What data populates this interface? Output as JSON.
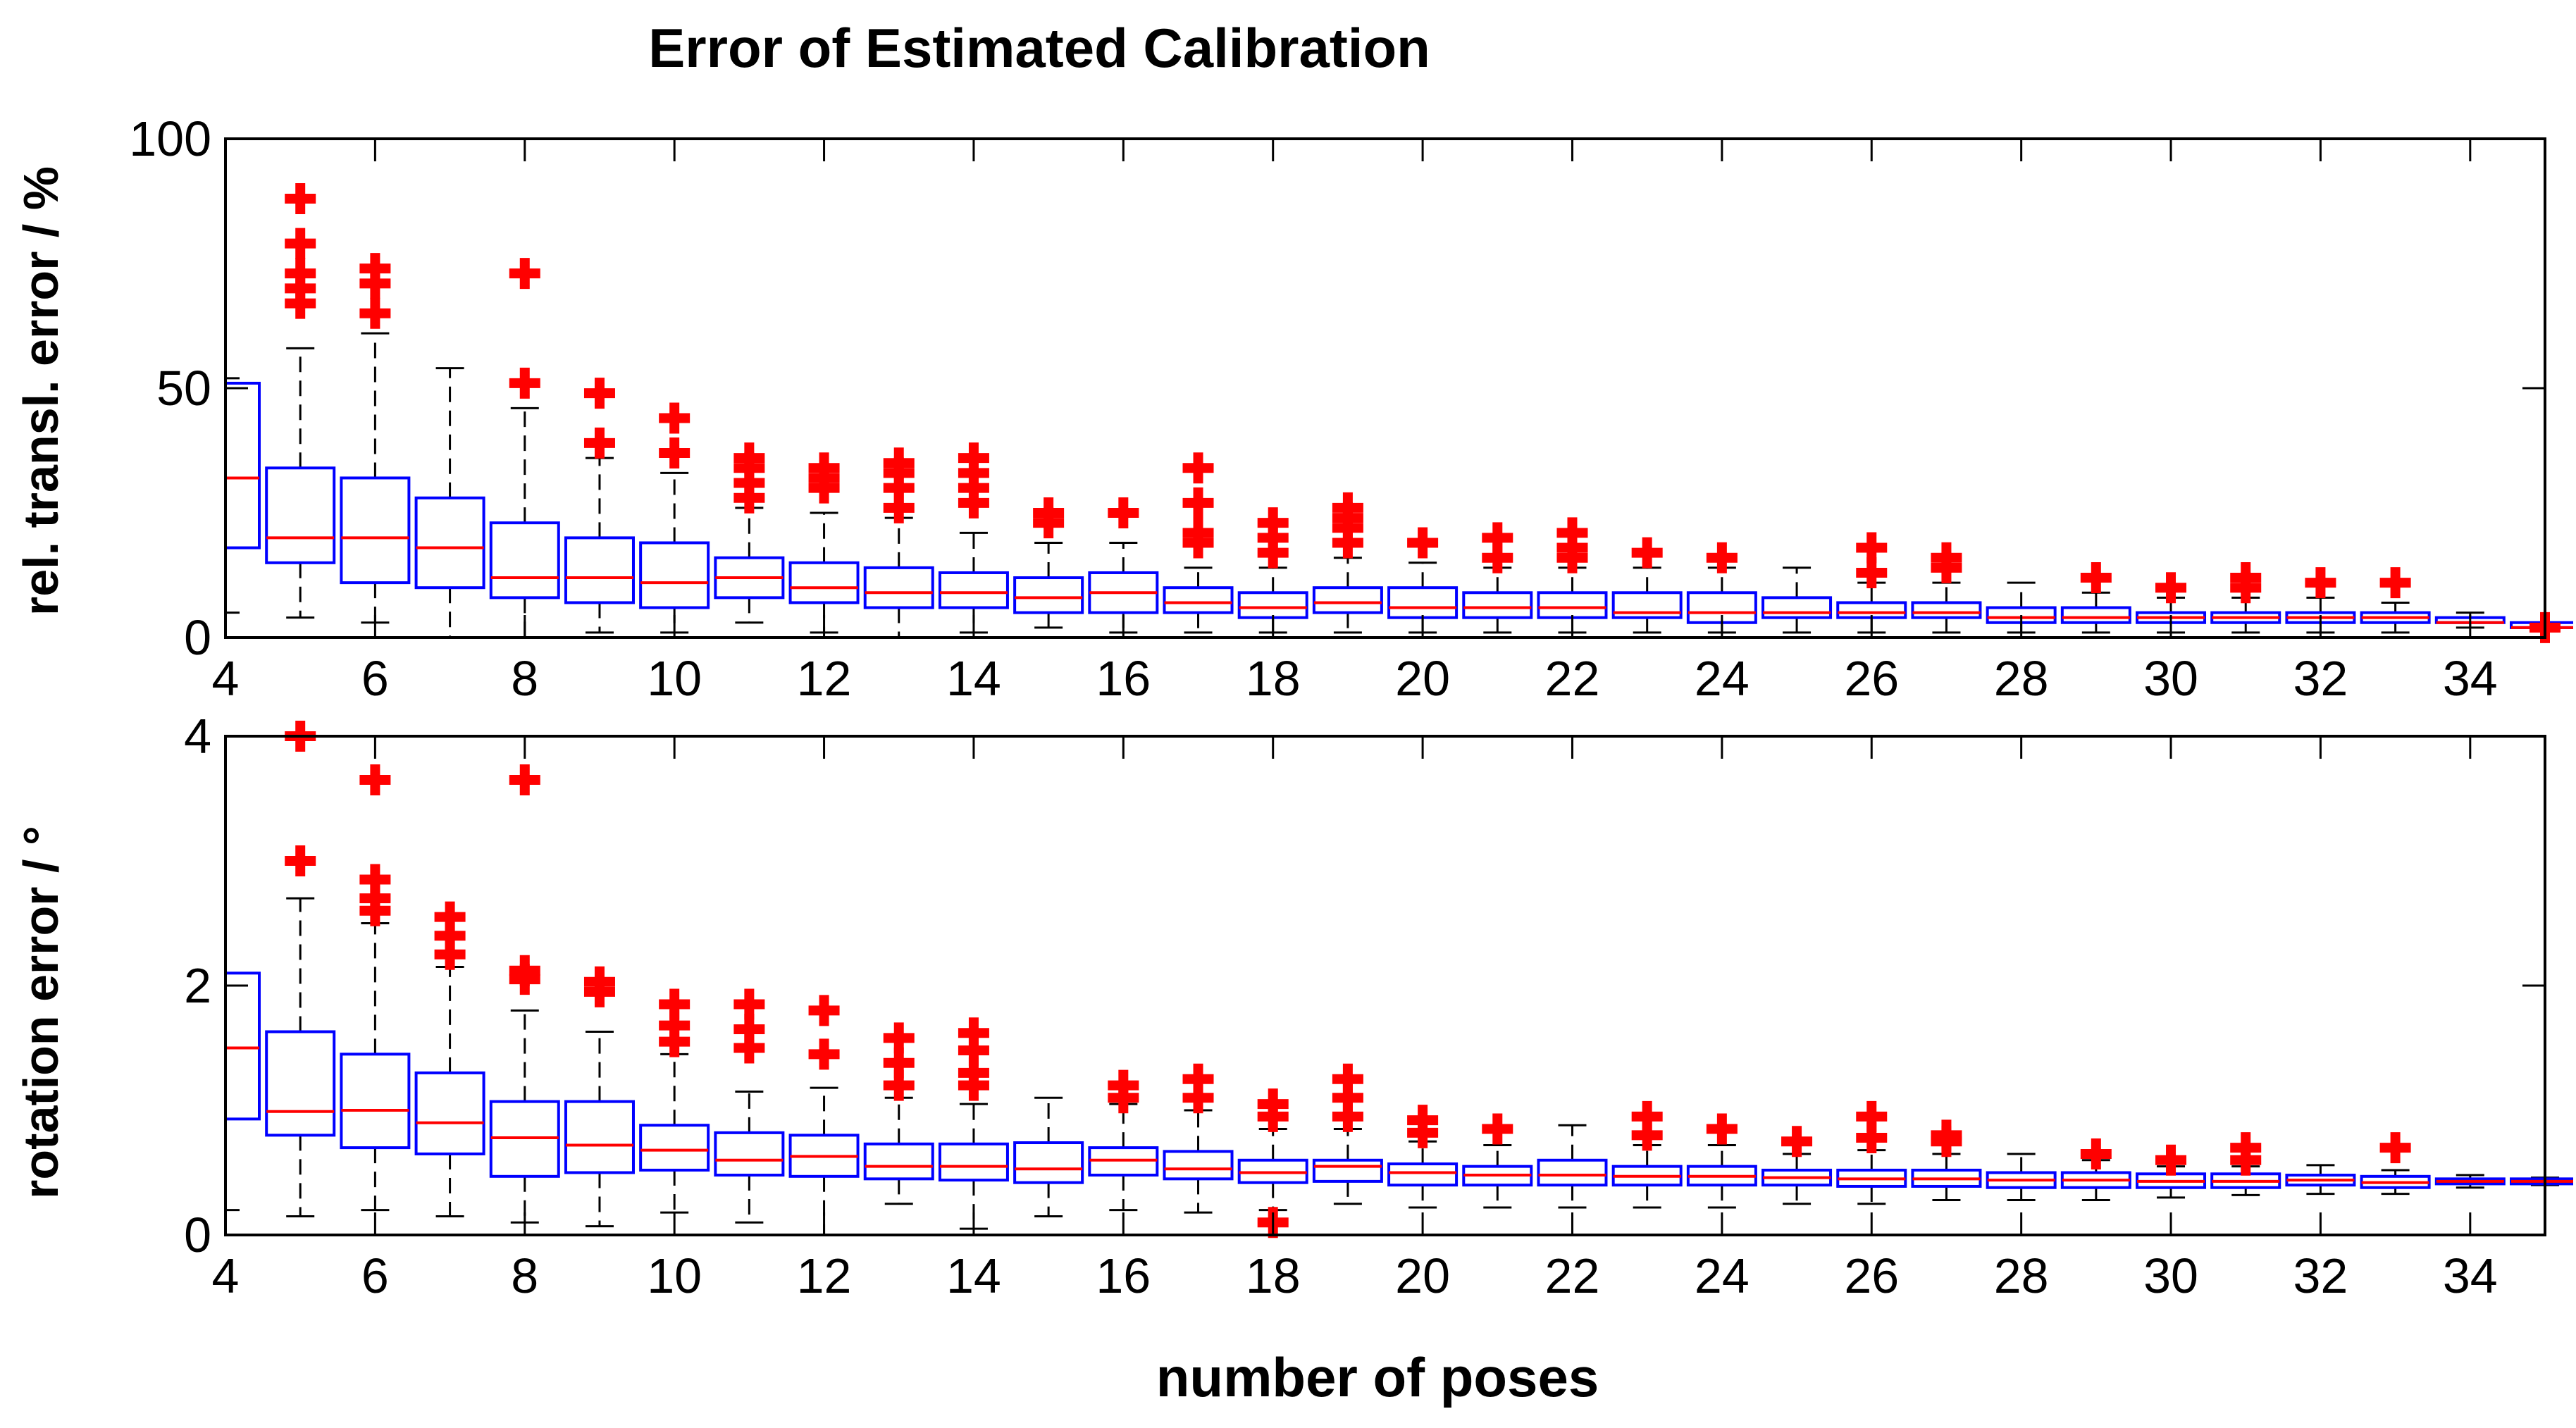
{
  "chart_data": {
    "type": "boxplot",
    "title": "Error of Estimated Calibration",
    "xlabel": "number of poses",
    "x_ticks": [
      4,
      6,
      8,
      10,
      12,
      14,
      16,
      18,
      20,
      22,
      24,
      26,
      28,
      30,
      32,
      34
    ],
    "xlim": [
      4,
      35
    ],
    "colors": {
      "box": "#0000ff",
      "median": "#ff0000",
      "whisker": "#000000",
      "outlier": "#ff0000"
    },
    "panels": [
      {
        "id": "translation",
        "ylabel": "rel. transl. error  /  %",
        "ylim": [
          0,
          100
        ],
        "y_ticks": [
          0,
          50,
          100
        ],
        "boxes": [
          {
            "x": 4,
            "q1": 18,
            "median": 32,
            "q3": 51,
            "lo": 5,
            "hi": 52,
            "outliers": []
          },
          {
            "x": 5,
            "q1": 15,
            "median": 20,
            "q3": 34,
            "lo": 4,
            "hi": 58,
            "outliers": [
              67,
              70,
              73,
              79,
              88
            ]
          },
          {
            "x": 6,
            "q1": 11,
            "median": 20,
            "q3": 32,
            "lo": 3,
            "hi": 61,
            "outliers": [
              65,
              71,
              74
            ]
          },
          {
            "x": 7,
            "q1": 10,
            "median": 18,
            "q3": 28,
            "lo": 0,
            "hi": 54,
            "outliers": []
          },
          {
            "x": 8,
            "q1": 8,
            "median": 12,
            "q3": 23,
            "lo": 0,
            "hi": 46,
            "outliers": [
              51,
              73
            ]
          },
          {
            "x": 9,
            "q1": 7,
            "median": 12,
            "q3": 20,
            "lo": 1,
            "hi": 36,
            "outliers": [
              39,
              49
            ]
          },
          {
            "x": 10,
            "q1": 6,
            "median": 11,
            "q3": 19,
            "lo": 1,
            "hi": 33,
            "outliers": [
              37,
              44
            ]
          },
          {
            "x": 11,
            "q1": 8,
            "median": 12,
            "q3": 16,
            "lo": 3,
            "hi": 26,
            "outliers": [
              28,
              31,
              34,
              36
            ]
          },
          {
            "x": 12,
            "q1": 7,
            "median": 10,
            "q3": 15,
            "lo": 1,
            "hi": 25,
            "outliers": [
              30,
              32,
              34
            ]
          },
          {
            "x": 13,
            "q1": 6,
            "median": 9,
            "q3": 14,
            "lo": 0,
            "hi": 24,
            "outliers": [
              26,
              30,
              33,
              35
            ]
          },
          {
            "x": 14,
            "q1": 6,
            "median": 9,
            "q3": 13,
            "lo": 1,
            "hi": 21,
            "outliers": [
              27,
              30,
              33,
              36
            ]
          },
          {
            "x": 15,
            "q1": 5,
            "median": 8,
            "q3": 12,
            "lo": 2,
            "hi": 19,
            "outliers": [
              23,
              25
            ]
          },
          {
            "x": 16,
            "q1": 5,
            "median": 9,
            "q3": 13,
            "lo": 1,
            "hi": 19,
            "outliers": [
              25
            ]
          },
          {
            "x": 17,
            "q1": 5,
            "median": 7,
            "q3": 10,
            "lo": 1,
            "hi": 14,
            "outliers": [
              19,
              21,
              27,
              34
            ]
          },
          {
            "x": 18,
            "q1": 4,
            "median": 6,
            "q3": 9,
            "lo": 1,
            "hi": 14,
            "outliers": [
              17,
              20,
              23
            ]
          },
          {
            "x": 19,
            "q1": 5,
            "median": 7,
            "q3": 10,
            "lo": 1,
            "hi": 16,
            "outliers": [
              19,
              22,
              24,
              26
            ]
          },
          {
            "x": 20,
            "q1": 4,
            "median": 6,
            "q3": 10,
            "lo": 1,
            "hi": 15,
            "outliers": [
              19
            ]
          },
          {
            "x": 21,
            "q1": 4,
            "median": 6,
            "q3": 9,
            "lo": 1,
            "hi": 14,
            "outliers": [
              16,
              20
            ]
          },
          {
            "x": 22,
            "q1": 4,
            "median": 6,
            "q3": 9,
            "lo": 1,
            "hi": 14,
            "outliers": [
              16,
              18,
              21
            ]
          },
          {
            "x": 23,
            "q1": 4,
            "median": 5,
            "q3": 9,
            "lo": 1,
            "hi": 14,
            "outliers": [
              17
            ]
          },
          {
            "x": 24,
            "q1": 3,
            "median": 5,
            "q3": 9,
            "lo": 1,
            "hi": 14,
            "outliers": [
              16
            ]
          },
          {
            "x": 25,
            "q1": 4,
            "median": 5,
            "q3": 8,
            "lo": 1,
            "hi": 14,
            "outliers": []
          },
          {
            "x": 26,
            "q1": 4,
            "median": 5,
            "q3": 7,
            "lo": 1,
            "hi": 11,
            "outliers": [
              13,
              18
            ]
          },
          {
            "x": 27,
            "q1": 4,
            "median": 5,
            "q3": 7,
            "lo": 1,
            "hi": 11,
            "outliers": [
              14,
              16
            ]
          },
          {
            "x": 28,
            "q1": 3,
            "median": 4,
            "q3": 6,
            "lo": 1,
            "hi": 11,
            "outliers": []
          },
          {
            "x": 29,
            "q1": 3,
            "median": 4,
            "q3": 6,
            "lo": 1,
            "hi": 9,
            "outliers": [
              12
            ]
          },
          {
            "x": 30,
            "q1": 3,
            "median": 4,
            "q3": 5,
            "lo": 1,
            "hi": 8,
            "outliers": [
              10
            ]
          },
          {
            "x": 31,
            "q1": 3,
            "median": 4,
            "q3": 5,
            "lo": 1,
            "hi": 8,
            "outliers": [
              10,
              12
            ]
          },
          {
            "x": 32,
            "q1": 3,
            "median": 4,
            "q3": 5,
            "lo": 1,
            "hi": 8,
            "outliers": [
              11
            ]
          },
          {
            "x": 33,
            "q1": 3,
            "median": 4,
            "q3": 5,
            "lo": 1,
            "hi": 7,
            "outliers": [
              11
            ]
          },
          {
            "x": 34,
            "q1": 3,
            "median": 3,
            "q3": 4,
            "lo": 2,
            "hi": 5,
            "outliers": []
          },
          {
            "x": 35,
            "q1": 2,
            "median": 2,
            "q3": 3,
            "lo": 2,
            "hi": 3,
            "outliers": [
              2
            ]
          }
        ]
      },
      {
        "id": "rotation",
        "ylabel": "rotation error  /  °",
        "ylim": [
          0,
          4
        ],
        "y_ticks": [
          0,
          2,
          4
        ],
        "boxes": [
          {
            "x": 4,
            "q1": 0.93,
            "median": 1.5,
            "q3": 2.1,
            "lo": 0.2,
            "hi": 2.1,
            "outliers": []
          },
          {
            "x": 5,
            "q1": 0.8,
            "median": 0.99,
            "q3": 1.63,
            "lo": 0.15,
            "hi": 2.7,
            "outliers": [
              3.0,
              4.0
            ]
          },
          {
            "x": 6,
            "q1": 0.7,
            "median": 1.0,
            "q3": 1.45,
            "lo": 0.2,
            "hi": 2.5,
            "outliers": [
              2.6,
              2.7,
              2.85,
              3.65
            ]
          },
          {
            "x": 7,
            "q1": 0.65,
            "median": 0.9,
            "q3": 1.3,
            "lo": 0.15,
            "hi": 2.15,
            "outliers": [
              2.25,
              2.4,
              2.55
            ]
          },
          {
            "x": 8,
            "q1": 0.47,
            "median": 0.78,
            "q3": 1.07,
            "lo": 0.1,
            "hi": 1.8,
            "outliers": [
              2.05,
              2.12,
              3.65
            ]
          },
          {
            "x": 9,
            "q1": 0.5,
            "median": 0.72,
            "q3": 1.07,
            "lo": 0.07,
            "hi": 1.63,
            "outliers": [
              1.95,
              2.03
            ]
          },
          {
            "x": 10,
            "q1": 0.52,
            "median": 0.68,
            "q3": 0.88,
            "lo": 0.18,
            "hi": 1.45,
            "outliers": [
              1.55,
              1.68,
              1.85
            ]
          },
          {
            "x": 11,
            "q1": 0.48,
            "median": 0.6,
            "q3": 0.82,
            "lo": 0.1,
            "hi": 1.15,
            "outliers": [
              1.5,
              1.65,
              1.85
            ]
          },
          {
            "x": 12,
            "q1": 0.47,
            "median": 0.63,
            "q3": 0.8,
            "lo": 0.0,
            "hi": 1.18,
            "outliers": [
              1.45,
              1.8
            ]
          },
          {
            "x": 13,
            "q1": 0.45,
            "median": 0.55,
            "q3": 0.73,
            "lo": 0.25,
            "hi": 1.1,
            "outliers": [
              1.2,
              1.38,
              1.58
            ]
          },
          {
            "x": 14,
            "q1": 0.44,
            "median": 0.55,
            "q3": 0.73,
            "lo": 0.05,
            "hi": 1.05,
            "outliers": [
              1.2,
              1.3,
              1.48,
              1.62
            ]
          },
          {
            "x": 15,
            "q1": 0.42,
            "median": 0.53,
            "q3": 0.74,
            "lo": 0.15,
            "hi": 1.1,
            "outliers": []
          },
          {
            "x": 16,
            "q1": 0.48,
            "median": 0.6,
            "q3": 0.7,
            "lo": 0.2,
            "hi": 1.05,
            "outliers": [
              1.1,
              1.2
            ]
          },
          {
            "x": 17,
            "q1": 0.45,
            "median": 0.53,
            "q3": 0.67,
            "lo": 0.18,
            "hi": 1.0,
            "outliers": [
              1.1,
              1.25
            ]
          },
          {
            "x": 18,
            "q1": 0.42,
            "median": 0.5,
            "q3": 0.6,
            "lo": 0.2,
            "hi": 0.85,
            "outliers": [
              0.1,
              0.95,
              1.05
            ]
          },
          {
            "x": 19,
            "q1": 0.43,
            "median": 0.55,
            "q3": 0.6,
            "lo": 0.25,
            "hi": 0.85,
            "outliers": [
              0.95,
              1.1,
              1.25
            ]
          },
          {
            "x": 20,
            "q1": 0.4,
            "median": 0.5,
            "q3": 0.57,
            "lo": 0.22,
            "hi": 0.75,
            "outliers": [
              0.82,
              0.92
            ]
          },
          {
            "x": 21,
            "q1": 0.4,
            "median": 0.48,
            "q3": 0.55,
            "lo": 0.22,
            "hi": 0.72,
            "outliers": [
              0.85
            ]
          },
          {
            "x": 22,
            "q1": 0.4,
            "median": 0.48,
            "q3": 0.6,
            "lo": 0.22,
            "hi": 0.88,
            "outliers": []
          },
          {
            "x": 23,
            "q1": 0.4,
            "median": 0.47,
            "q3": 0.55,
            "lo": 0.22,
            "hi": 0.72,
            "outliers": [
              0.8,
              0.95
            ]
          },
          {
            "x": 24,
            "q1": 0.4,
            "median": 0.47,
            "q3": 0.55,
            "lo": 0.22,
            "hi": 0.72,
            "outliers": [
              0.85
            ]
          },
          {
            "x": 25,
            "q1": 0.4,
            "median": 0.46,
            "q3": 0.52,
            "lo": 0.25,
            "hi": 0.65,
            "outliers": [
              0.75
            ]
          },
          {
            "x": 26,
            "q1": 0.39,
            "median": 0.45,
            "q3": 0.52,
            "lo": 0.25,
            "hi": 0.68,
            "outliers": [
              0.78,
              0.95
            ]
          },
          {
            "x": 27,
            "q1": 0.39,
            "median": 0.45,
            "q3": 0.52,
            "lo": 0.28,
            "hi": 0.65,
            "outliers": [
              0.75,
              0.8
            ]
          },
          {
            "x": 28,
            "q1": 0.38,
            "median": 0.44,
            "q3": 0.5,
            "lo": 0.28,
            "hi": 0.65,
            "outliers": []
          },
          {
            "x": 29,
            "q1": 0.38,
            "median": 0.44,
            "q3": 0.5,
            "lo": 0.28,
            "hi": 0.6,
            "outliers": [
              0.65
            ]
          },
          {
            "x": 30,
            "q1": 0.38,
            "median": 0.43,
            "q3": 0.49,
            "lo": 0.3,
            "hi": 0.55,
            "outliers": [
              0.6
            ]
          },
          {
            "x": 31,
            "q1": 0.38,
            "median": 0.43,
            "q3": 0.49,
            "lo": 0.32,
            "hi": 0.55,
            "outliers": [
              0.6,
              0.7
            ]
          },
          {
            "x": 32,
            "q1": 0.4,
            "median": 0.44,
            "q3": 0.48,
            "lo": 0.33,
            "hi": 0.56,
            "outliers": []
          },
          {
            "x": 33,
            "q1": 0.38,
            "median": 0.42,
            "q3": 0.47,
            "lo": 0.33,
            "hi": 0.52,
            "outliers": [
              0.7
            ]
          },
          {
            "x": 34,
            "q1": 0.41,
            "median": 0.43,
            "q3": 0.45,
            "lo": 0.38,
            "hi": 0.48,
            "outliers": []
          },
          {
            "x": 35,
            "q1": 0.41,
            "median": 0.43,
            "q3": 0.45,
            "lo": 0.4,
            "hi": 0.46,
            "outliers": []
          }
        ]
      }
    ]
  }
}
